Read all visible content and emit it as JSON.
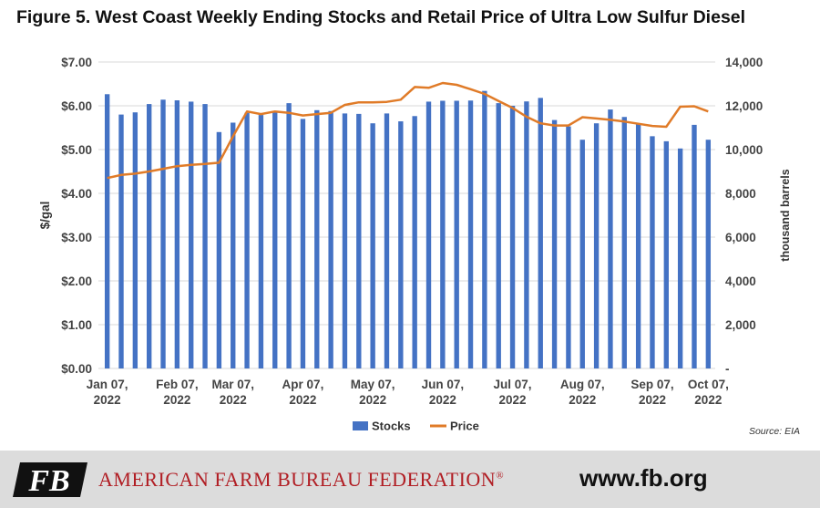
{
  "title": "Figure 5. West Coast Weekly Ending Stocks and Retail Price of Ultra Low Sulfur Diesel",
  "source": "Source: EIA",
  "footer": {
    "org_name": "AMERICAN FARM BUREAU FEDERATION",
    "org_mark": "®",
    "url": "www.fb.org",
    "logo_text": "FB",
    "brand_color": "#b11e24"
  },
  "chart_data": {
    "type": "bar+line",
    "title": "Figure 5. West Coast Weekly Ending Stocks and Retail Price of Ultra Low Sulfur Diesel",
    "ylabel_left": "$/gal",
    "ylabel_right": "thousand barrels",
    "ylim_left": [
      0,
      7
    ],
    "ylim_right": [
      0,
      14000
    ],
    "yticks_left": [
      "$0.00",
      "$1.00",
      "$2.00",
      "$3.00",
      "$4.00",
      "$5.00",
      "$6.00",
      "$7.00"
    ],
    "yticks_right": [
      "-",
      "2,000",
      "4,000",
      "6,000",
      "8,000",
      "10,000",
      "12,000",
      "14,000"
    ],
    "x_tick_labels": [
      {
        "line1": "Jan 07,",
        "line2": "2022",
        "index": 0
      },
      {
        "line1": "Feb 07,",
        "line2": "2022",
        "index": 5
      },
      {
        "line1": "Mar 07,",
        "line2": "2022",
        "index": 9
      },
      {
        "line1": "Apr 07,",
        "line2": "2022",
        "index": 14
      },
      {
        "line1": "May 07,",
        "line2": "2022",
        "index": 19
      },
      {
        "line1": "Jun 07,",
        "line2": "2022",
        "index": 24
      },
      {
        "line1": "Jul 07,",
        "line2": "2022",
        "index": 29
      },
      {
        "line1": "Aug 07,",
        "line2": "2022",
        "index": 34
      },
      {
        "line1": "Sep 07,",
        "line2": "2022",
        "index": 39
      },
      {
        "line1": "Oct 07,",
        "line2": "2022",
        "index": 43
      }
    ],
    "grid": true,
    "legend_position": "bottom-center",
    "series": [
      {
        "name": "Stocks",
        "axis": "right",
        "type": "bar",
        "color": "#4472c4",
        "values": [
          12530,
          11600,
          11700,
          12080,
          12280,
          12250,
          12190,
          12080,
          10800,
          11230,
          11680,
          11580,
          11740,
          12120,
          11400,
          11800,
          11760,
          11650,
          11630,
          11200,
          11650,
          11290,
          11530,
          12190,
          12230,
          12230,
          12240,
          12680,
          12120,
          12000,
          12200,
          12360,
          11350,
          11060,
          10450,
          11200,
          11830,
          11490,
          11190,
          10610,
          10380,
          10050,
          11130,
          10450
        ]
      },
      {
        "name": "Price",
        "axis": "left",
        "type": "line",
        "color": "#e07b28",
        "values": [
          4.35,
          4.42,
          4.45,
          4.5,
          4.56,
          4.62,
          4.65,
          4.67,
          4.7,
          5.3,
          5.87,
          5.81,
          5.87,
          5.84,
          5.78,
          5.81,
          5.84,
          6.02,
          6.08,
          6.08,
          6.09,
          6.14,
          6.43,
          6.41,
          6.52,
          6.48,
          6.38,
          6.27,
          6.11,
          5.95,
          5.75,
          5.6,
          5.55,
          5.55,
          5.74,
          5.71,
          5.68,
          5.64,
          5.59,
          5.54,
          5.52,
          5.98,
          5.99,
          5.87
        ]
      }
    ]
  }
}
